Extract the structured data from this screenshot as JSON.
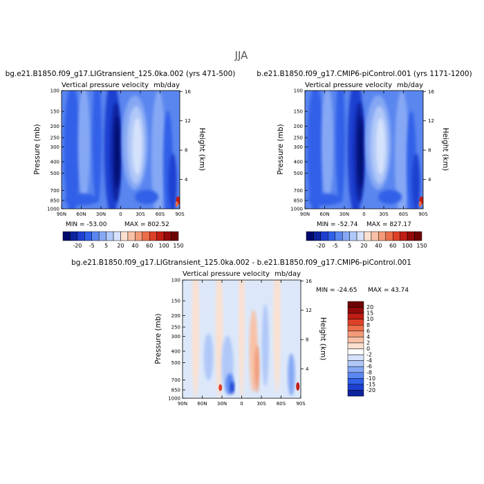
{
  "page_title": "JJA",
  "colors": {
    "cool_palette": [
      "#000a6e",
      "#0e249e",
      "#1e3fd0",
      "#3060e8",
      "#5a86ef",
      "#86a8f4",
      "#b0c8f8",
      "#d6e2fb"
    ],
    "warm_palette": [
      "#fbe0cf",
      "#f8c1a6",
      "#f39a78",
      "#ec6e4b",
      "#dd4028",
      "#c01d14",
      "#930a0a",
      "#6e0303"
    ]
  },
  "chart_data": [
    {
      "type": "heatmap",
      "title": "bg.e21.B1850.f09_g17.LIGtransient_125.0ka.002 (yrs 471-500)",
      "subtitle_left": "Vertical pressure velocity",
      "subtitle_right": "mb/day",
      "ylabel": "Pressure (mb)",
      "y2label": "Height (km)",
      "x_ticks": [
        "90N",
        "60N",
        "30N",
        "0",
        "30S",
        "60S",
        "90S"
      ],
      "y_ticks": [
        "100",
        "150",
        "200",
        "250",
        "300",
        "400",
        "500",
        "700",
        "850",
        "1000"
      ],
      "y2_ticks": [
        "16",
        "12",
        "8",
        "4"
      ],
      "min_label": "MIN = -53.00",
      "max_label": "MAX = 802.52",
      "colorbar_labels": [
        "-20",
        "-5",
        "5",
        "20",
        "40",
        "60",
        "100",
        "150"
      ],
      "colorbar_levels": [
        -50,
        -30,
        -20,
        -15,
        -10,
        -5,
        0,
        5,
        10,
        15,
        20,
        30,
        40,
        50,
        60,
        80,
        100,
        120,
        150
      ]
    },
    {
      "type": "heatmap",
      "title": "b.e21.B1850.f09_g17.CMIP6-piControl.001 (yrs 1171-1200)",
      "subtitle_left": "Vertical pressure velocity",
      "subtitle_right": "mb/day",
      "ylabel": "Pressure (mb)",
      "y2label": "Height (km)",
      "x_ticks": [
        "90N",
        "60N",
        "30N",
        "0",
        "30S",
        "60S",
        "90S"
      ],
      "y_ticks": [
        "100",
        "150",
        "200",
        "250",
        "300",
        "400",
        "500",
        "700",
        "850",
        "1000"
      ],
      "y2_ticks": [
        "16",
        "12",
        "8",
        "4"
      ],
      "min_label": "MIN = -52.74",
      "max_label": "MAX = 827.17",
      "colorbar_labels": [
        "-20",
        "-5",
        "5",
        "20",
        "40",
        "60",
        "100",
        "150"
      ],
      "colorbar_levels": [
        -50,
        -30,
        -20,
        -15,
        -10,
        -5,
        0,
        5,
        10,
        15,
        20,
        30,
        40,
        50,
        60,
        80,
        100,
        120,
        150
      ]
    },
    {
      "type": "heatmap",
      "title": "bg.e21.B1850.f09_g17.LIGtransient_125.0ka.002 - b.e21.B1850.f09_g17.CMIP6-piControl.001",
      "subtitle_left": "Vertical pressure velocity",
      "subtitle_right": "mb/day",
      "ylabel": "Pressure (mb)",
      "y2label": "Height (km)",
      "x_ticks": [
        "90N",
        "60N",
        "30N",
        "0",
        "30S",
        "60S",
        "90S"
      ],
      "y_ticks": [
        "100",
        "150",
        "200",
        "250",
        "300",
        "400",
        "500",
        "700",
        "850",
        "1000"
      ],
      "y2_ticks": [
        "16",
        "12",
        "8",
        "4"
      ],
      "min_label": "MIN = -24.65",
      "max_label": "MAX =  43.74",
      "colorbar_labels": [
        "20",
        "15",
        "10",
        "8",
        "6",
        "4",
        "2",
        "0",
        "-2",
        "-4",
        "-6",
        "-8",
        "-10",
        "-15",
        "-20"
      ],
      "colorbar_levels": [
        -20,
        -15,
        -10,
        -8,
        -6,
        -4,
        -2,
        0,
        2,
        4,
        6,
        8,
        10,
        15,
        20
      ]
    }
  ]
}
